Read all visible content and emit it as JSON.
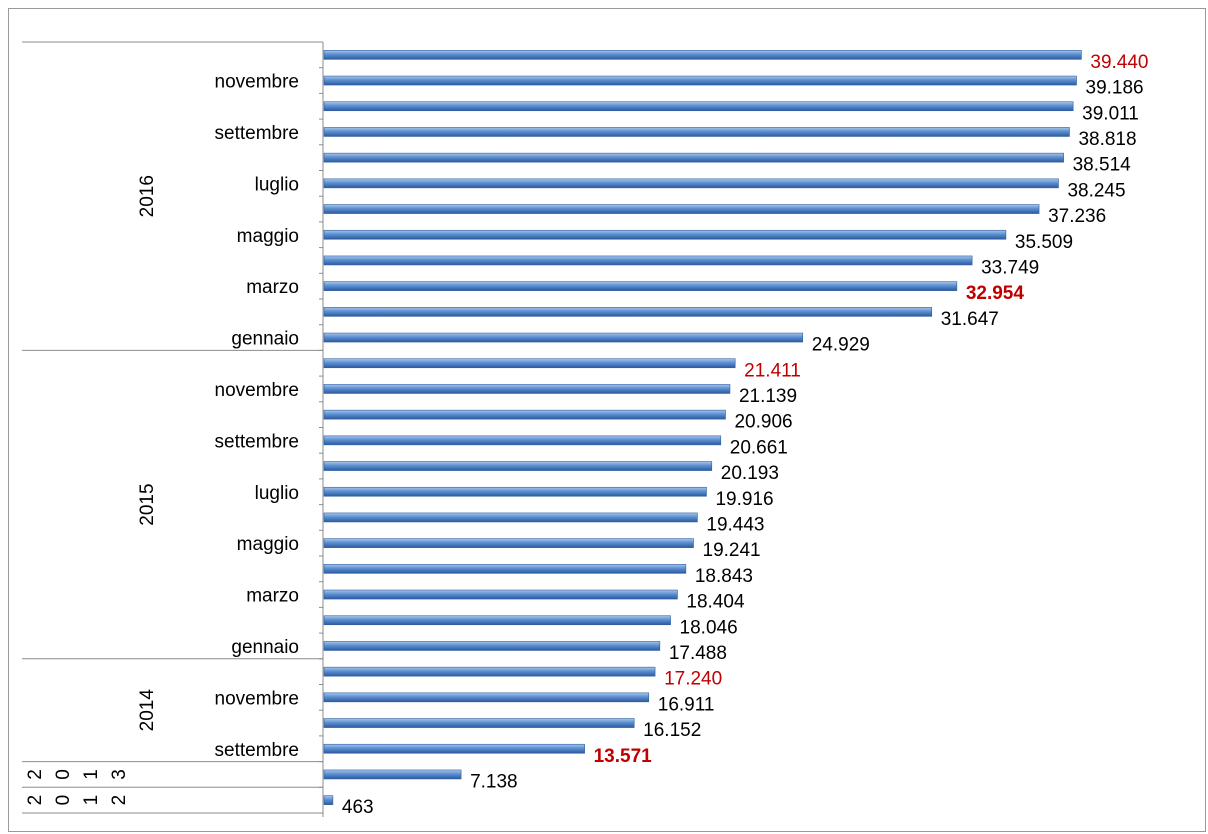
{
  "chart_data": {
    "type": "bar",
    "orientation": "horizontal",
    "title": "",
    "xlabel": "",
    "ylabel": "",
    "xlim": [
      0,
      40000
    ],
    "grid": false,
    "legend": "none",
    "bar_color": "#4a7fc1",
    "label_color": "#000000",
    "highlight_color": "#c00000",
    "groups": [
      {
        "year": "2016",
        "bars": [
          {
            "label": "",
            "value": 39440,
            "value_label": "39.440",
            "highlight": true,
            "bold": false
          },
          {
            "label": "novembre",
            "value": 39186,
            "value_label": "39.186",
            "highlight": false,
            "bold": false
          },
          {
            "label": "",
            "value": 39011,
            "value_label": "39.011",
            "highlight": false,
            "bold": false
          },
          {
            "label": "settembre",
            "value": 38818,
            "value_label": "38.818",
            "highlight": false,
            "bold": false
          },
          {
            "label": "",
            "value": 38514,
            "value_label": "38.514",
            "highlight": false,
            "bold": false
          },
          {
            "label": "luglio",
            "value": 38245,
            "value_label": "38.245",
            "highlight": false,
            "bold": false
          },
          {
            "label": "",
            "value": 37236,
            "value_label": "37.236",
            "highlight": false,
            "bold": false
          },
          {
            "label": "maggio",
            "value": 35509,
            "value_label": "35.509",
            "highlight": false,
            "bold": false
          },
          {
            "label": "",
            "value": 33749,
            "value_label": "33.749",
            "highlight": false,
            "bold": false
          },
          {
            "label": "marzo",
            "value": 32954,
            "value_label": "32.954",
            "highlight": true,
            "bold": true
          },
          {
            "label": "",
            "value": 31647,
            "value_label": "31.647",
            "highlight": false,
            "bold": false
          },
          {
            "label": "gennaio",
            "value": 24929,
            "value_label": "24.929",
            "highlight": false,
            "bold": false
          }
        ]
      },
      {
        "year": "2015",
        "bars": [
          {
            "label": "",
            "value": 21411,
            "value_label": "21.411",
            "highlight": true,
            "bold": false
          },
          {
            "label": "novembre",
            "value": 21139,
            "value_label": "21.139",
            "highlight": false,
            "bold": false
          },
          {
            "label": "",
            "value": 20906,
            "value_label": "20.906",
            "highlight": false,
            "bold": false
          },
          {
            "label": "settembre",
            "value": 20661,
            "value_label": "20.661",
            "highlight": false,
            "bold": false
          },
          {
            "label": "",
            "value": 20193,
            "value_label": "20.193",
            "highlight": false,
            "bold": false
          },
          {
            "label": "luglio",
            "value": 19916,
            "value_label": "19.916",
            "highlight": false,
            "bold": false
          },
          {
            "label": "",
            "value": 19443,
            "value_label": "19.443",
            "highlight": false,
            "bold": false
          },
          {
            "label": "maggio",
            "value": 19241,
            "value_label": "19.241",
            "highlight": false,
            "bold": false
          },
          {
            "label": "",
            "value": 18843,
            "value_label": "18.843",
            "highlight": false,
            "bold": false
          },
          {
            "label": "marzo",
            "value": 18404,
            "value_label": "18.404",
            "highlight": false,
            "bold": false
          },
          {
            "label": "",
            "value": 18046,
            "value_label": "18.046",
            "highlight": false,
            "bold": false
          },
          {
            "label": "gennaio",
            "value": 17488,
            "value_label": "17.488",
            "highlight": false,
            "bold": false
          }
        ]
      },
      {
        "year": "2014",
        "bars": [
          {
            "label": "",
            "value": 17240,
            "value_label": "17.240",
            "highlight": true,
            "bold": false
          },
          {
            "label": "novembre",
            "value": 16911,
            "value_label": "16.911",
            "highlight": false,
            "bold": false
          },
          {
            "label": "",
            "value": 16152,
            "value_label": "16.152",
            "highlight": false,
            "bold": false
          },
          {
            "label": "settembre",
            "value": 13571,
            "value_label": "13.571",
            "highlight": true,
            "bold": true
          }
        ]
      },
      {
        "year": "2013",
        "bars": [
          {
            "label": "",
            "value": 7138,
            "value_label": "7.138",
            "highlight": false,
            "bold": false
          }
        ]
      },
      {
        "year": "2012",
        "bars": [
          {
            "label": "",
            "value": 463,
            "value_label": "463",
            "highlight": false,
            "bold": false
          }
        ]
      }
    ]
  }
}
